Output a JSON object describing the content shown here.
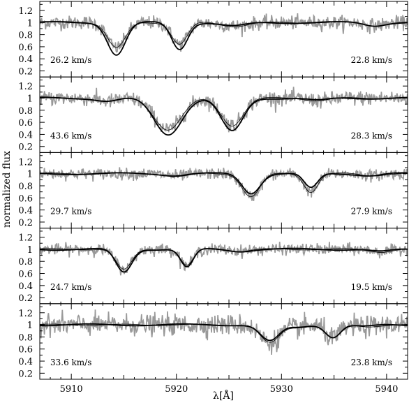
{
  "chart_data": {
    "type": "line",
    "xlabel": "λ[Å]",
    "ylabel": "normalized flux",
    "xlim": [
      5907,
      5942
    ],
    "x_ticks": [
      5910,
      5920,
      5930,
      5940
    ],
    "y_ticks": [
      0.2,
      0.4,
      0.6,
      0.8,
      1,
      1.2
    ],
    "ylim": [
      0.1,
      1.35
    ],
    "panels": [
      {
        "label_left": "26.2 km/s",
        "label_right": "22.8 km/s",
        "lines": [
          {
            "center": 5914.3,
            "depth_fit": 0.53,
            "depth_model": 0.42,
            "width": 0.85
          },
          {
            "center": 5920.3,
            "depth_fit": 0.44,
            "depth_model": 0.36,
            "width": 0.75
          }
        ],
        "minor_dips": [
          {
            "center": 5925.5,
            "depth": 0.06,
            "width": 1.2
          },
          {
            "center": 5938.8,
            "depth": 0.05,
            "width": 0.9
          }
        ]
      },
      {
        "label_left": "43.6 km/s",
        "label_right": "28.3 km/s",
        "lines": [
          {
            "center": 5919.2,
            "depth_fit": 0.6,
            "depth_model": 0.52,
            "width": 1.3
          },
          {
            "center": 5925.3,
            "depth_fit": 0.55,
            "depth_model": 0.45,
            "width": 1.05
          }
        ],
        "minor_dips": [
          {
            "center": 5913.5,
            "depth": 0.05,
            "width": 1.0
          },
          {
            "center": 5933.5,
            "depth": 0.04,
            "width": 1.0
          }
        ]
      },
      {
        "label_left": "29.7 km/s",
        "label_right": "27.9 km/s",
        "lines": [
          {
            "center": 5927.1,
            "depth_fit": 0.32,
            "depth_model": 0.38,
            "width": 0.85
          },
          {
            "center": 5932.8,
            "depth_fit": 0.24,
            "depth_model": 0.3,
            "width": 0.65
          }
        ],
        "minor_dips": [
          {
            "center": 5920.0,
            "depth": 0.03,
            "width": 1.0
          },
          {
            "center": 5938.5,
            "depth": 0.03,
            "width": 1.0
          }
        ]
      },
      {
        "label_left": "24.7 km/s",
        "label_right": "19.5 km/s",
        "lines": [
          {
            "center": 5915.0,
            "depth_fit": 0.38,
            "depth_model": 0.34,
            "width": 0.75
          },
          {
            "center": 5921.0,
            "depth_fit": 0.3,
            "depth_model": 0.27,
            "width": 0.6
          }
        ],
        "minor_dips": [
          {
            "center": 5926.0,
            "depth": 0.03,
            "width": 1.0
          },
          {
            "center": 5939.5,
            "depth": 0.04,
            "width": 1.0
          }
        ]
      },
      {
        "label_left": "33.6 km/s",
        "label_right": "23.8 km/s",
        "lines": [
          {
            "center": 5928.9,
            "depth_fit": 0.27,
            "depth_model": 0.3,
            "width": 0.9
          },
          {
            "center": 5934.9,
            "depth_fit": 0.2,
            "depth_model": 0.22,
            "width": 0.7
          }
        ],
        "minor_dips": [
          {
            "center": 5931.5,
            "depth": 0.04,
            "width": 0.9
          },
          {
            "center": 5938.0,
            "depth": 0.03,
            "width": 1.0
          }
        ]
      }
    ],
    "series": [
      {
        "style": "observed",
        "color": "#999999"
      },
      {
        "style": "fit",
        "color": "#000000"
      },
      {
        "style": "model",
        "color": "#000000"
      }
    ]
  }
}
